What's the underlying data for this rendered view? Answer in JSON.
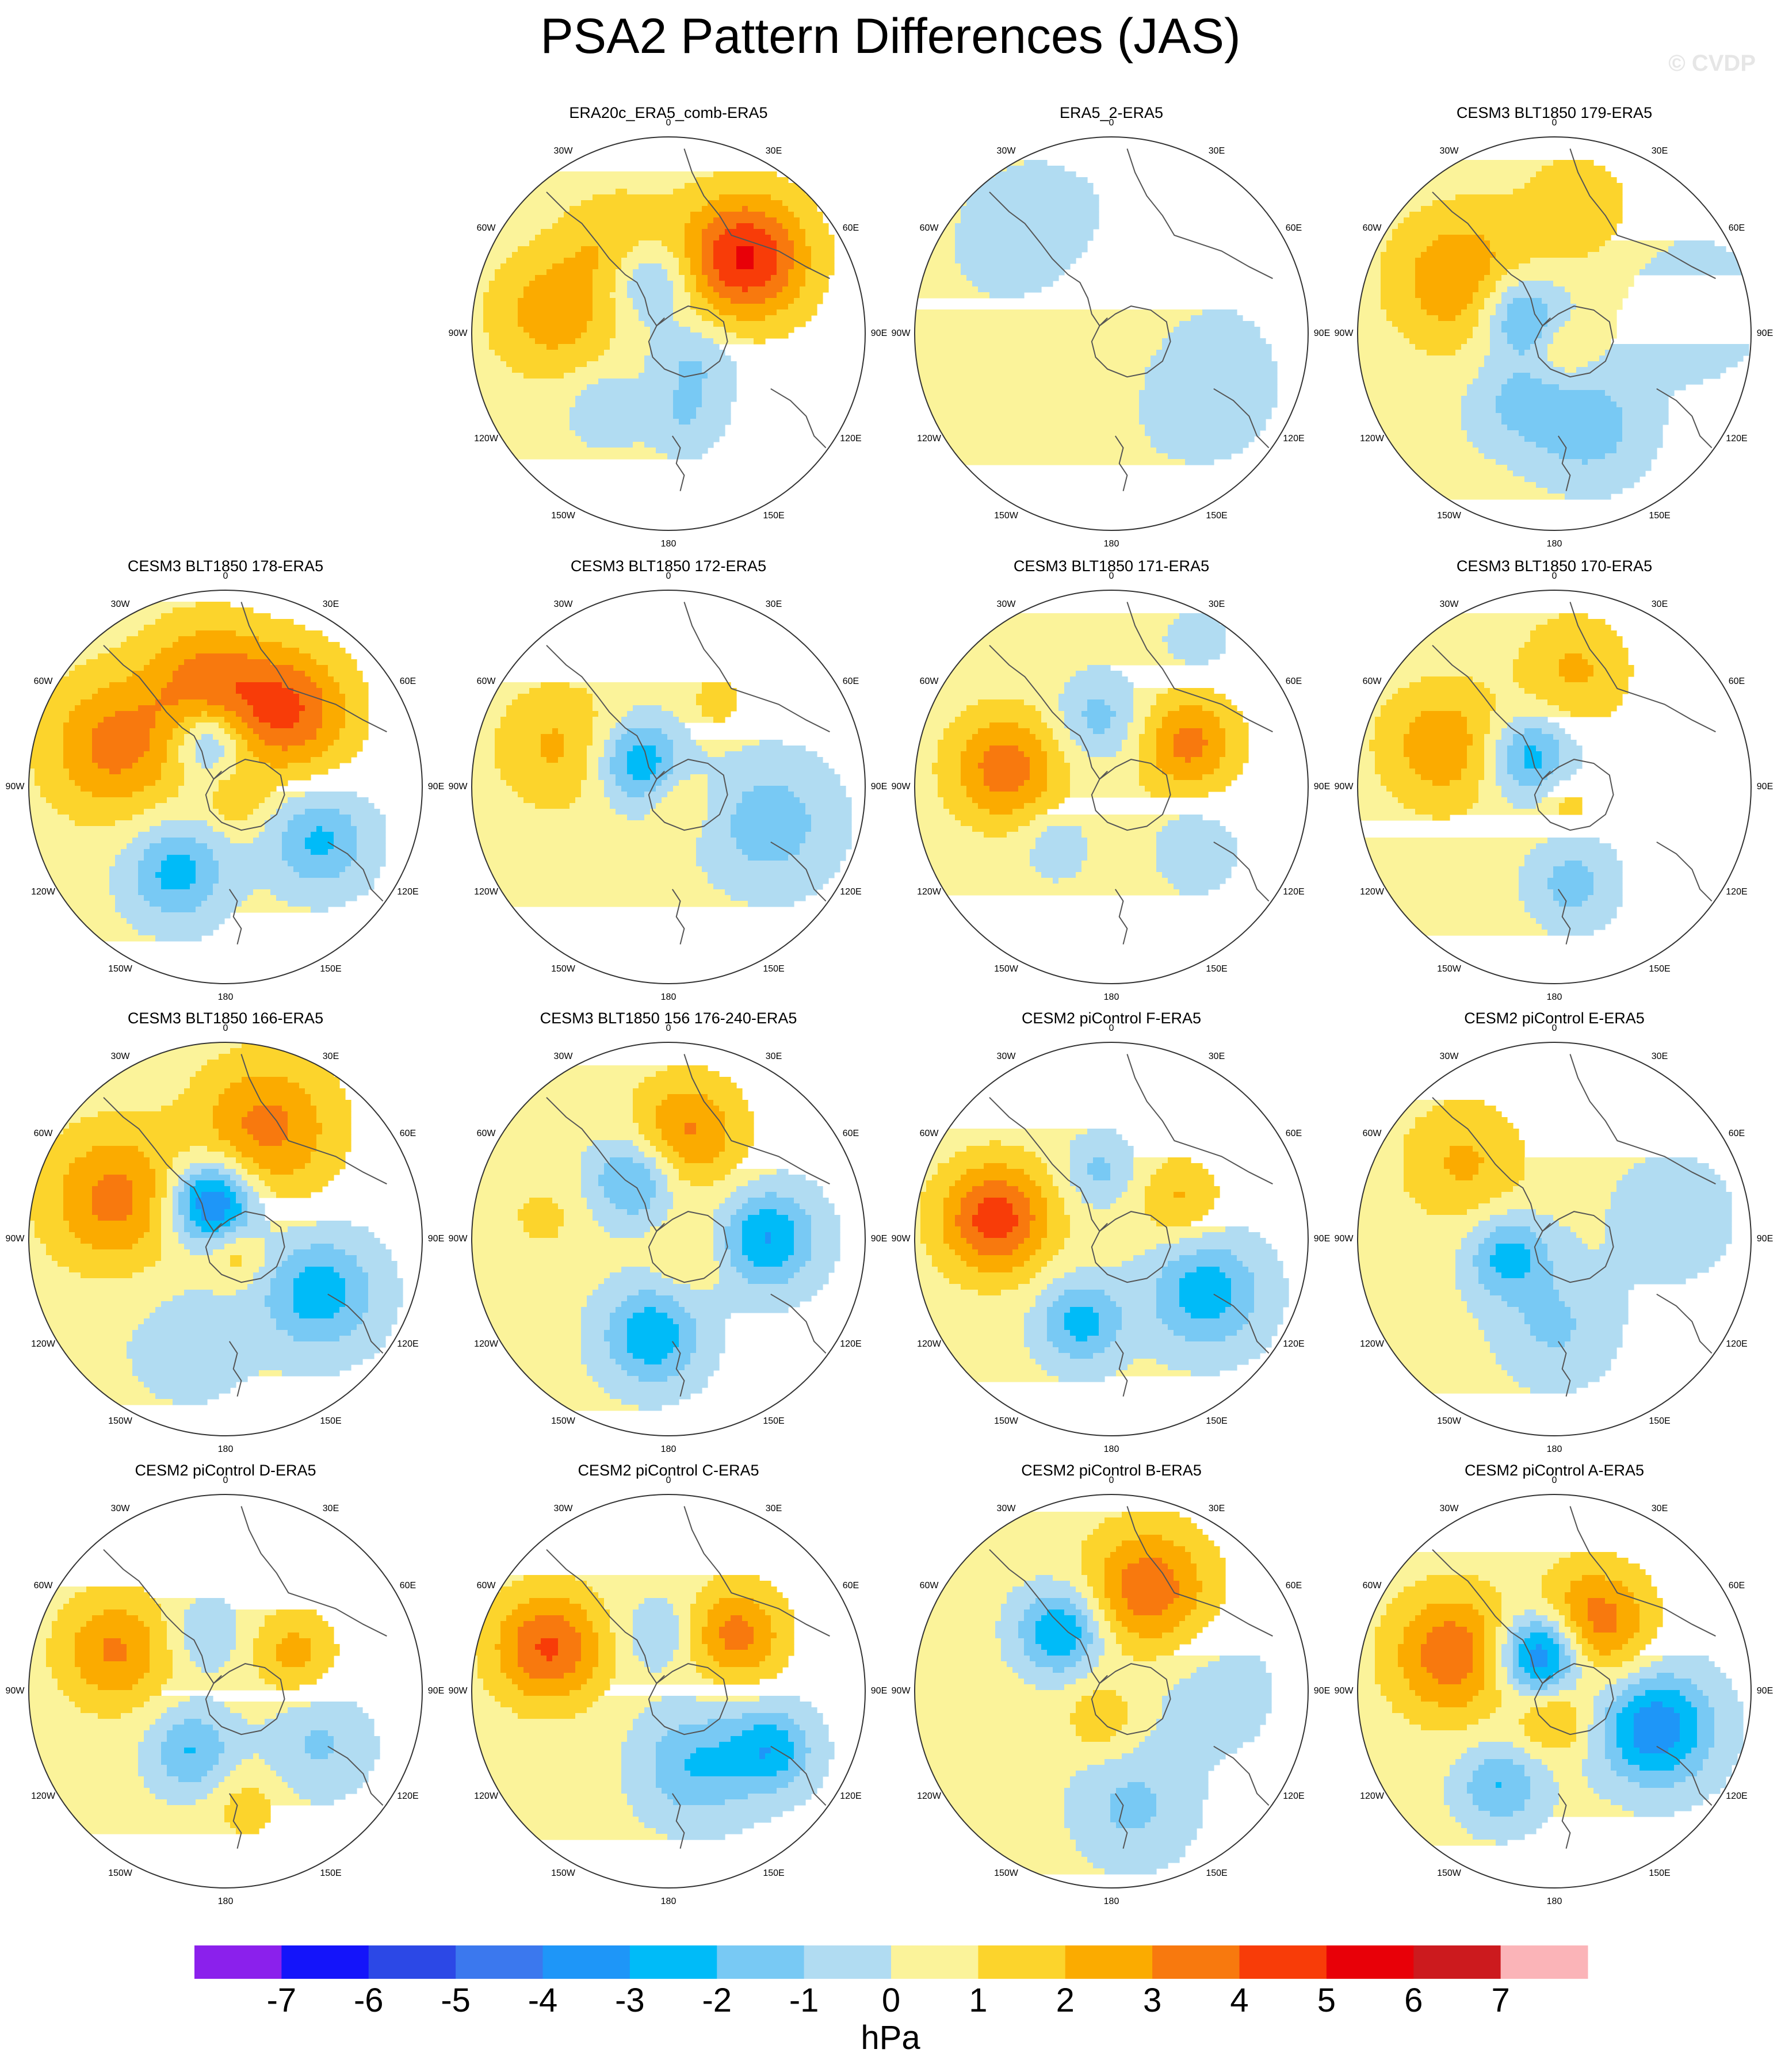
{
  "title": "PSA2 Pattern Differences (JAS)",
  "watermark": "© CVDP",
  "units": "hPa",
  "longitude_labels": [
    "0",
    "30E",
    "60E",
    "90E",
    "120E",
    "150E",
    "180",
    "150W",
    "120W",
    "90W",
    "60W",
    "30W"
  ],
  "colors": {
    "levels": [
      -7,
      -6,
      -5,
      -4,
      -3,
      -2,
      -1,
      0,
      1,
      2,
      3,
      4,
      5,
      6,
      7
    ],
    "palette": [
      "#8b20ec",
      "#1414fa",
      "#2c48e6",
      "#3b78ee",
      "#1e96f8",
      "#00bbf8",
      "#78c9f4",
      "#b1dcf2",
      "#fbf39a",
      "#fcd42c",
      "#fbab00",
      "#f8790e",
      "#f83c08",
      "#e80008",
      "#cc1a1e",
      "#fbb4b8"
    ],
    "coastline": "#555555"
  },
  "chart_data": {
    "type": "contour-map-panels",
    "projection": "south polar stereographic",
    "variable": "sea level pressure difference",
    "units": "hPa",
    "colorbar_ticks": [
      "-7",
      "-6",
      "-5",
      "-4",
      "-3",
      "-2",
      "-1",
      "0",
      "1",
      "2",
      "3",
      "4",
      "5",
      "6",
      "7"
    ],
    "panels": [
      {
        "title": "ERA20c_ERA5_comb-ERA5",
        "row": 0,
        "col": 1,
        "centers": [
          {
            "lon": -100,
            "colat": 24,
            "value": 2.2,
            "spread": 9
          },
          {
            "lon": 135,
            "colat": 22,
            "value": 4.8,
            "spread": 9
          },
          {
            "lon": -150,
            "colat": 20,
            "value": 1.8,
            "spread": 8
          },
          {
            "lon": -160,
            "colat": 12,
            "value": -2.6,
            "spread": 6
          },
          {
            "lon": 40,
            "colat": 8,
            "value": -1.5,
            "spread": 6
          },
          {
            "lon": -40,
            "colat": 20,
            "value": -1.4,
            "spread": 5
          },
          {
            "lon": 10,
            "colat": 18,
            "value": -1.2,
            "spread": 5
          }
        ]
      },
      {
        "title": "ERA5_2-ERA5",
        "row": 0,
        "col": 2,
        "centers": [
          {
            "lon": 60,
            "colat": 20,
            "value": -0.7,
            "spread": 14
          },
          {
            "lon": -140,
            "colat": 24,
            "value": -0.7,
            "spread": 14
          },
          {
            "lon": -60,
            "colat": 10,
            "value": 0.6,
            "spread": 10
          },
          {
            "lon": 160,
            "colat": 10,
            "value": 0.5,
            "spread": 8
          }
        ]
      },
      {
        "title": "CESM3 BLT1850 179-ERA5",
        "row": 0,
        "col": 3,
        "centers": [
          {
            "lon": -120,
            "colat": 22,
            "value": 2.6,
            "spread": 10
          },
          {
            "lon": -120,
            "colat": 8,
            "value": -3.0,
            "spread": 6
          },
          {
            "lon": 20,
            "colat": 20,
            "value": -2.0,
            "spread": 8
          },
          {
            "lon": -30,
            "colat": 16,
            "value": -1.5,
            "spread": 7
          },
          {
            "lon": 100,
            "colat": 28,
            "value": -1.0,
            "spread": 10
          },
          {
            "lon": 30,
            "colat": 4,
            "value": 1.2,
            "spread": 4
          },
          {
            "lon": 170,
            "colat": 26,
            "value": 1.4,
            "spread": 8
          }
        ]
      },
      {
        "title": "CESM3 BLT1850 178-ERA5",
        "row": 1,
        "col": 0,
        "centers": [
          {
            "lon": -110,
            "colat": 24,
            "value": 3.0,
            "spread": 10
          },
          {
            "lon": 140,
            "colat": 20,
            "value": 3.6,
            "spread": 9
          },
          {
            "lon": -170,
            "colat": 22,
            "value": 2.8,
            "spread": 9
          },
          {
            "lon": -160,
            "colat": 10,
            "value": -2.8,
            "spread": 5
          },
          {
            "lon": -30,
            "colat": 20,
            "value": -2.8,
            "spread": 7
          },
          {
            "lon": 60,
            "colat": 22,
            "value": -2.6,
            "spread": 7
          },
          {
            "lon": 40,
            "colat": 4,
            "value": 1.3,
            "spread": 4
          }
        ]
      },
      {
        "title": "CESM3 BLT1850 172-ERA5",
        "row": 1,
        "col": 1,
        "centers": [
          {
            "lon": -130,
            "colat": 8,
            "value": -3.2,
            "spread": 6
          },
          {
            "lon": 70,
            "colat": 22,
            "value": -2.0,
            "spread": 9
          },
          {
            "lon": -110,
            "colat": 24,
            "value": 1.8,
            "spread": 9
          },
          {
            "lon": 40,
            "colat": 4,
            "value": 1.2,
            "spread": 4
          },
          {
            "lon": 150,
            "colat": 20,
            "value": 1.2,
            "spread": 4
          }
        ]
      },
      {
        "title": "CESM3 BLT1850 171-ERA5",
        "row": 1,
        "col": 2,
        "centers": [
          {
            "lon": -100,
            "colat": 22,
            "value": 3.2,
            "spread": 8
          },
          {
            "lon": 120,
            "colat": 18,
            "value": 3.0,
            "spread": 7
          },
          {
            "lon": -170,
            "colat": 14,
            "value": -1.8,
            "spread": 6
          },
          {
            "lon": 50,
            "colat": 20,
            "value": -1.6,
            "spread": 6
          },
          {
            "lon": -40,
            "colat": 16,
            "value": -1.5,
            "spread": 5
          },
          {
            "lon": 10,
            "colat": 14,
            "value": 0.6,
            "spread": 10
          },
          {
            "lon": 150,
            "colat": 34,
            "value": -0.8,
            "spread": 5
          }
        ]
      },
      {
        "title": "CESM3 BLT1850 170-ERA5",
        "row": 1,
        "col": 3,
        "centers": [
          {
            "lon": -110,
            "colat": 24,
            "value": 2.4,
            "spread": 9
          },
          {
            "lon": -140,
            "colat": 8,
            "value": -3.0,
            "spread": 6
          },
          {
            "lon": 10,
            "colat": 20,
            "value": -1.8,
            "spread": 6
          },
          {
            "lon": 170,
            "colat": 24,
            "value": 1.8,
            "spread": 8
          },
          {
            "lon": 40,
            "colat": 4,
            "value": 1.2,
            "spread": 4
          }
        ]
      },
      {
        "title": "CESM3 BLT1850 166-ERA5",
        "row": 2,
        "col": 0,
        "centers": [
          {
            "lon": -160,
            "colat": 8,
            "value": -5.0,
            "spread": 6
          },
          {
            "lon": -110,
            "colat": 24,
            "value": 3.0,
            "spread": 10
          },
          {
            "lon": 160,
            "colat": 24,
            "value": 3.0,
            "spread": 10
          },
          {
            "lon": 60,
            "colat": 22,
            "value": -3.0,
            "spread": 8
          },
          {
            "lon": -20,
            "colat": 22,
            "value": -0.8,
            "spread": 10
          },
          {
            "lon": 30,
            "colat": 4,
            "value": 1.5,
            "spread": 4
          }
        ]
      },
      {
        "title": "CESM3 BLT1850 156 176-240-ERA5",
        "row": 2,
        "col": 1,
        "centers": [
          {
            "lon": -10,
            "colat": 20,
            "value": -3.2,
            "spread": 7
          },
          {
            "lon": 90,
            "colat": 20,
            "value": -3.4,
            "spread": 7
          },
          {
            "lon": -150,
            "colat": 14,
            "value": -2.8,
            "spread": 6
          },
          {
            "lon": 170,
            "colat": 22,
            "value": 2.8,
            "spread": 8
          },
          {
            "lon": -100,
            "colat": 26,
            "value": 1.0,
            "spread": 5
          },
          {
            "lon": 60,
            "colat": 6,
            "value": 1.0,
            "spread": 5
          }
        ]
      },
      {
        "title": "CESM2 piControl F-ERA5",
        "row": 2,
        "col": 2,
        "centers": [
          {
            "lon": -100,
            "colat": 24,
            "value": 4.2,
            "spread": 8
          },
          {
            "lon": 60,
            "colat": 22,
            "value": -3.0,
            "spread": 8
          },
          {
            "lon": -20,
            "colat": 18,
            "value": -2.8,
            "spread": 6
          },
          {
            "lon": -170,
            "colat": 14,
            "value": -1.6,
            "spread": 5
          },
          {
            "lon": 120,
            "colat": 16,
            "value": 1.8,
            "spread": 6
          }
        ]
      },
      {
        "title": "CESM2 piControl E-ERA5",
        "row": 2,
        "col": 3,
        "centers": [
          {
            "lon": -70,
            "colat": 10,
            "value": -2.8,
            "spread": 6
          },
          {
            "lon": 0,
            "colat": 18,
            "value": -1.5,
            "spread": 8
          },
          {
            "lon": -130,
            "colat": 24,
            "value": 1.8,
            "spread": 9
          },
          {
            "lon": 100,
            "colat": 24,
            "value": -0.8,
            "spread": 10
          }
        ]
      },
      {
        "title": "CESM2 piControl D-ERA5",
        "row": 3,
        "col": 0,
        "centers": [
          {
            "lon": -110,
            "colat": 24,
            "value": 2.8,
            "spread": 8
          },
          {
            "lon": -30,
            "colat": 14,
            "value": -2.4,
            "spread": 6
          },
          {
            "lon": 120,
            "colat": 16,
            "value": 2.0,
            "spread": 6
          },
          {
            "lon": -160,
            "colat": 12,
            "value": -1.4,
            "spread": 5
          },
          {
            "lon": 60,
            "colat": 22,
            "value": -1.5,
            "spread": 7
          },
          {
            "lon": 10,
            "colat": 24,
            "value": 1.2,
            "spread": 5
          }
        ]
      },
      {
        "title": "CESM2 piControl C-ERA5",
        "row": 3,
        "col": 1,
        "centers": [
          {
            "lon": -110,
            "colat": 26,
            "value": 3.8,
            "spread": 8
          },
          {
            "lon": 130,
            "colat": 18,
            "value": 3.0,
            "spread": 7
          },
          {
            "lon": 20,
            "colat": 16,
            "value": -2.4,
            "spread": 8
          },
          {
            "lon": 60,
            "colat": 24,
            "value": -3.0,
            "spread": 6
          },
          {
            "lon": -170,
            "colat": 12,
            "value": -1.5,
            "spread": 5
          }
        ]
      },
      {
        "title": "CESM2 piControl B-ERA5",
        "row": 3,
        "col": 2,
        "centers": [
          {
            "lon": -140,
            "colat": 16,
            "value": -3.6,
            "spread": 6
          },
          {
            "lon": 160,
            "colat": 22,
            "value": 3.4,
            "spread": 9
          },
          {
            "lon": 10,
            "colat": 24,
            "value": -1.6,
            "spread": 8
          },
          {
            "lon": -20,
            "colat": 6,
            "value": 1.5,
            "spread": 5
          },
          {
            "lon": 90,
            "colat": 20,
            "value": -0.8,
            "spread": 10
          }
        ]
      },
      {
        "title": "CESM2 piControl A-ERA5",
        "row": 3,
        "col": 3,
        "centers": [
          {
            "lon": -160,
            "colat": 8,
            "value": -5.2,
            "spread": 6
          },
          {
            "lon": 70,
            "colat": 22,
            "value": -4.2,
            "spread": 8
          },
          {
            "lon": -110,
            "colat": 22,
            "value": 3.4,
            "spread": 9
          },
          {
            "lon": 150,
            "colat": 16,
            "value": 3.4,
            "spread": 8
          },
          {
            "lon": -30,
            "colat": 22,
            "value": -2.4,
            "spread": 6
          },
          {
            "lon": 0,
            "colat": 6,
            "value": 2.0,
            "spread": 5
          }
        ]
      }
    ]
  }
}
